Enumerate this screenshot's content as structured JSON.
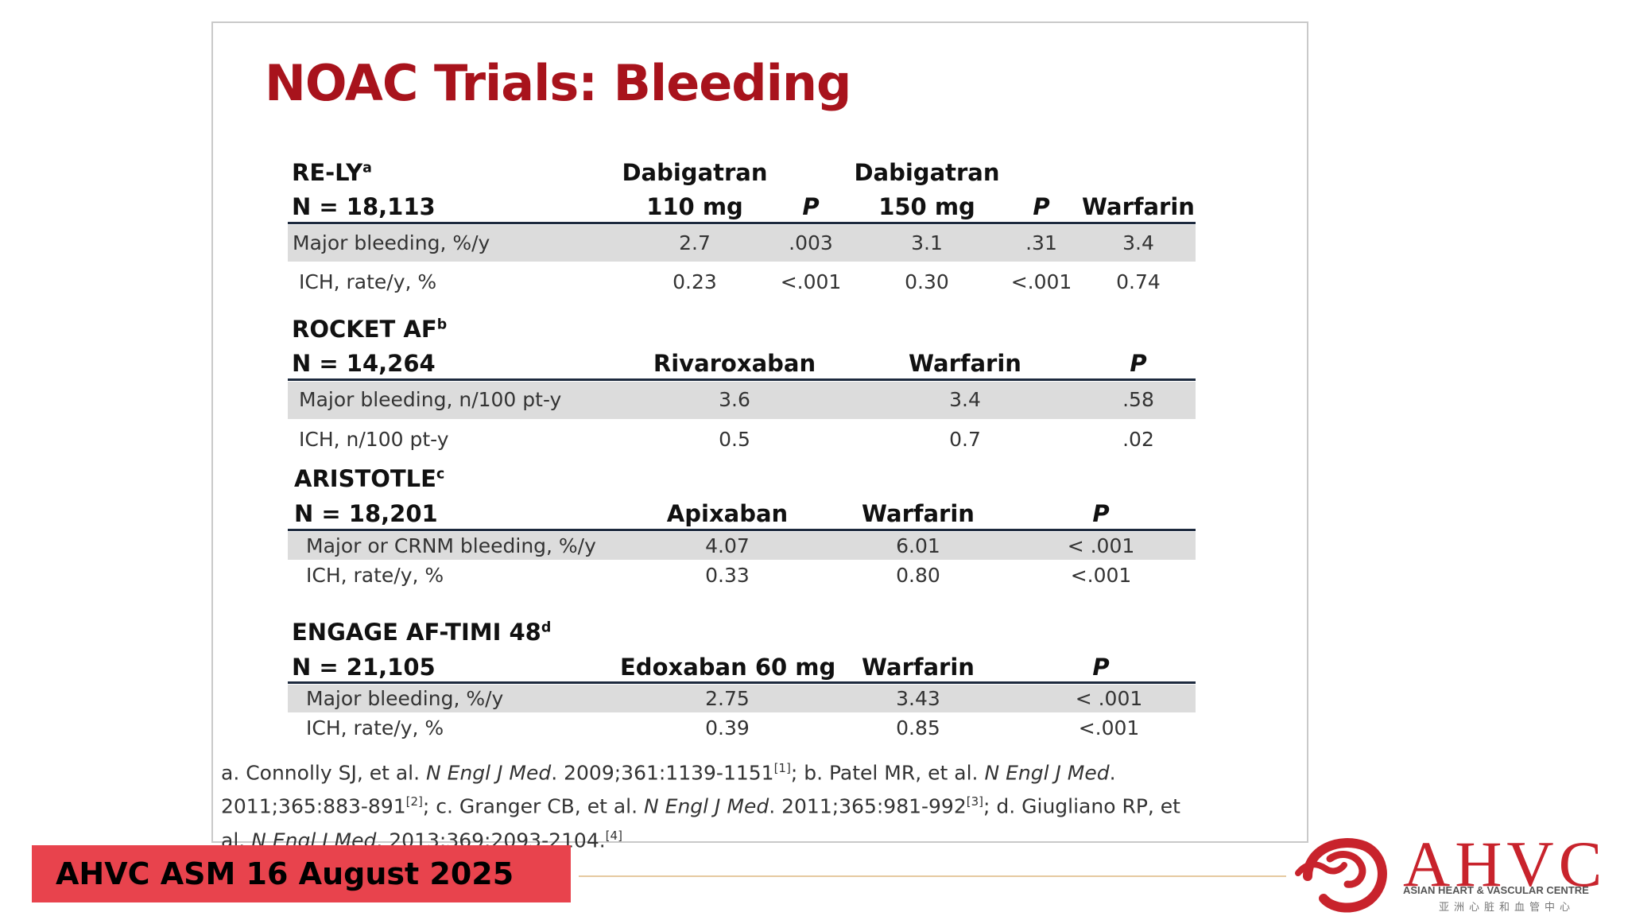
{
  "title": "NOAC Trials: Bleeding",
  "trials": [
    {
      "name": "RE-LY",
      "sup": "a",
      "n": "N = 18,113",
      "header_top": [
        "Dabigatran",
        "",
        "Dabigatran",
        "",
        ""
      ],
      "headers": [
        "110 mg",
        "P",
        "150 mg",
        "P",
        "Warfarin"
      ],
      "rows": [
        {
          "label": "Major bleeding, %/y",
          "values": [
            "2.7",
            ".003",
            "3.1",
            ".31",
            "3.4"
          ]
        },
        {
          "label": "ICH, rate/y, %",
          "values": [
            "0.23",
            "<.001",
            "0.30",
            "<.001",
            "0.74"
          ]
        }
      ]
    },
    {
      "name": "ROCKET AF",
      "sup": "b",
      "n": "N = 14,264",
      "headers": [
        "Rivaroxaban",
        "Warfarin",
        "P"
      ],
      "rows": [
        {
          "label": "Major bleeding, n/100 pt-y",
          "values": [
            "3.6",
            "3.4",
            ".58"
          ]
        },
        {
          "label": "ICH, n/100 pt-y",
          "values": [
            "0.5",
            "0.7",
            ".02"
          ]
        }
      ]
    },
    {
      "name": "ARISTOTLE",
      "sup": "c",
      "n": "N = 18,201",
      "headers": [
        "Apixaban",
        "Warfarin",
        "P"
      ],
      "rows": [
        {
          "label": "Major or CRNM bleeding, %/y",
          "values": [
            "4.07",
            "6.01",
            "< .001"
          ]
        },
        {
          "label": "ICH, rate/y, %",
          "values": [
            "0.33",
            "0.80",
            "<.001"
          ]
        }
      ]
    },
    {
      "name": "ENGAGE AF-TIMI 48",
      "sup": "d",
      "n": "N = 21,105",
      "headers": [
        "Edoxaban 60 mg",
        "Warfarin",
        "P"
      ],
      "rows": [
        {
          "label": "Major bleeding, %/y",
          "values": [
            "2.75",
            "3.43",
            "< .001"
          ]
        },
        {
          "label": "ICH, rate/y, %",
          "values": [
            "0.39",
            "0.85",
            "<.001"
          ]
        }
      ]
    }
  ],
  "references": {
    "a_pre": "a. Connolly SJ, et al. ",
    "a_journal": "N Engl J Med",
    "a_post": ". 2009;361:1139-1151",
    "a_cite": "[1]",
    "b_pre": "; b. Patel MR, et al. ",
    "b_journal": "N Engl J Med",
    "b_post": ". 2011;365:883-891",
    "b_cite": "[2]",
    "c_pre": "; c. Granger CB, et al. ",
    "c_journal": "N Engl J Med",
    "c_post": ". 2011;365:981-992",
    "c_cite": "[3]",
    "d_pre": "; d. Giugliano RP, et al. ",
    "d_journal": "N Engl J Med",
    "d_post": ". 2013;369:2093-2104.",
    "d_cite": "[4]"
  },
  "footer": {
    "event": "AHVC ASM 16 August 2025"
  },
  "logo": {
    "name": "AHVC",
    "subtitle": "ASIAN HEART & VASCULAR CENTRE",
    "chinese": "亚洲心脏和血管中心",
    "color": "#c8232c"
  }
}
